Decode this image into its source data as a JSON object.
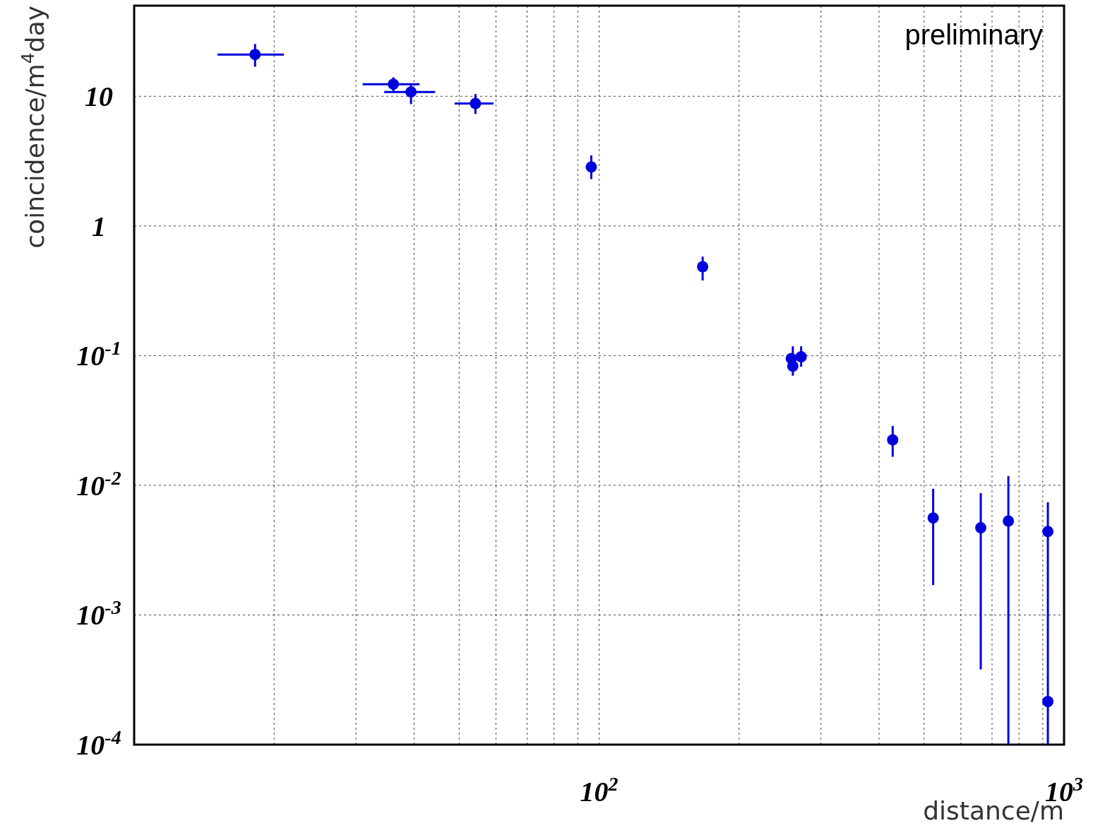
{
  "chart_data": {
    "type": "scatter",
    "xlabel": "distance/m",
    "ylabel": "coincidence/m$^{4}$day",
    "log": "xy",
    "grid": true,
    "marker": "circle",
    "xlim": [
      10,
      1000
    ],
    "ylim": [
      0.0001,
      50
    ],
    "xticks": [
      {
        "value": 20,
        "label": null
      },
      {
        "value": 30,
        "label": null
      },
      {
        "value": 40,
        "label": null
      },
      {
        "value": 50,
        "label": null
      },
      {
        "value": 60,
        "label": null
      },
      {
        "value": 70,
        "label": null
      },
      {
        "value": 80,
        "label": null
      },
      {
        "value": 90,
        "label": null
      },
      {
        "value": 100,
        "label": "10$^{2}$"
      },
      {
        "value": 200,
        "label": null
      },
      {
        "value": 300,
        "label": null
      },
      {
        "value": 400,
        "label": null
      },
      {
        "value": 500,
        "label": null
      },
      {
        "value": 600,
        "label": null
      },
      {
        "value": 700,
        "label": null
      },
      {
        "value": 800,
        "label": null
      },
      {
        "value": 900,
        "label": null
      },
      {
        "value": 1000,
        "label": "10$^{3}$"
      }
    ],
    "yticks": [
      {
        "value": 0.0001,
        "label": "10$^{-4}$"
      },
      {
        "value": 0.001,
        "label": "10$^{-3}$"
      },
      {
        "value": 0.01,
        "label": "10$^{-2}$"
      },
      {
        "value": 0.1,
        "label": "10$^{-1}$"
      },
      1,
      10
    ],
    "annotations": [
      "preliminary"
    ],
    "series": [
      {
        "color": "#0000dd",
        "x": [
          18.2,
          36.1,
          39.4,
          54.2,
          96.2,
          167,
          259,
          261,
          272,
          428,
          523,
          662,
          759,
          923,
          923
        ],
        "values": [
          21,
          12.4,
          10.8,
          8.8,
          2.85,
          0.485,
          0.095,
          0.083,
          0.098,
          0.0224,
          0.0056,
          0.0047,
          0.0053,
          0.0044,
          0.000215
        ],
        "errors": [
          [
            16.9,
            25.3
          ],
          [
            10.9,
            14
          ],
          [
            8.7,
            12.4
          ],
          [
            7.3,
            10.4
          ],
          [
            2.3,
            3.5
          ],
          [
            0.38,
            0.58
          ],
          null,
          [
            0.07,
            0.118
          ],
          [
            0.082,
            0.118
          ],
          [
            0.0166,
            0.0287
          ],
          [
            0.0017,
            0.0094
          ],
          [
            0.00038,
            0.0087
          ],
          [
            0.0001,
            0.0118
          ],
          [
            0.0001,
            0.0074
          ],
          null
        ],
        "xerrors": [
          [
            15.1,
            21
          ],
          [
            31,
            41.1
          ],
          [
            34.5,
            44.4
          ],
          [
            48.9,
            59.3
          ],
          null,
          null,
          null,
          null,
          null,
          null,
          null,
          null,
          null,
          null,
          null
        ]
      }
    ]
  }
}
